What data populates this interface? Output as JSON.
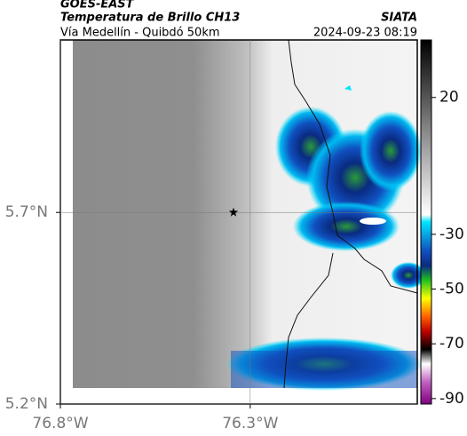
{
  "header": {
    "source": "GOES-EAST",
    "product": "Temperatura de Brillo CH13",
    "region": "Vía Medellín - Quibdó 50km",
    "agency": "SIATA",
    "datetime": "2024-09-23 08:19"
  },
  "chart_data": {
    "type": "map",
    "xlim": [
      -76.8,
      -75.86
    ],
    "ylim": [
      5.2,
      6.15
    ],
    "xticks": [
      {
        "value": -76.8,
        "label": "76.8°W"
      },
      {
        "value": -76.3,
        "label": "76.3°W"
      }
    ],
    "yticks": [
      {
        "value": 5.2,
        "label": "5.2°N"
      },
      {
        "value": 5.7,
        "label": "5.7°N"
      }
    ],
    "grid": true,
    "marker": {
      "lon": -76.344,
      "lat": 5.7
    },
    "colorbar": {
      "lim": [
        -92,
        41
      ],
      "ticks": [
        20,
        -30,
        -50,
        -70,
        -90
      ]
    }
  }
}
